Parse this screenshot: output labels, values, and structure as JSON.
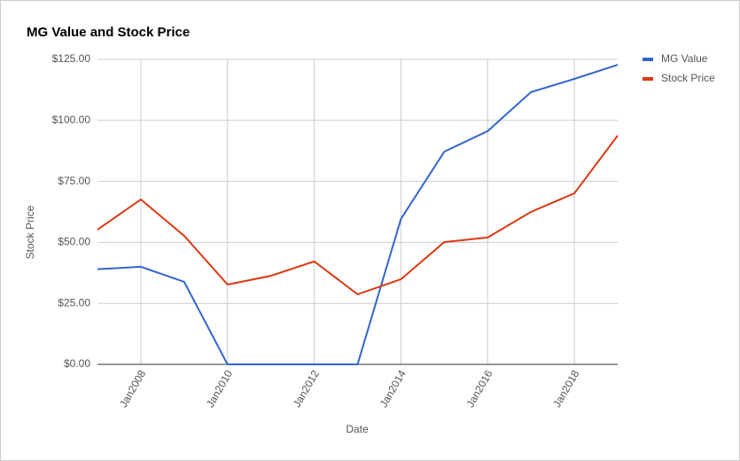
{
  "chart_data": {
    "type": "line",
    "title": "MG Value and Stock Price",
    "categories": [
      null,
      "Jan2008",
      null,
      "Jan2010",
      null,
      "Jan2012",
      null,
      "Jan2014",
      null,
      "Jan2016",
      null,
      "Jan2018",
      null
    ],
    "series": [
      {
        "name": "MG Value",
        "color": "#3366cc",
        "values": [
          39,
          40,
          33.8,
          0,
          0,
          0,
          0,
          59.6,
          87.2,
          95.6,
          111.6,
          117,
          122.8
        ]
      },
      {
        "name": "Stock Price",
        "color": "#dc3912",
        "values": [
          55.2,
          67.6,
          52.7,
          32.7,
          36.3,
          42.2,
          28.7,
          34.9,
          50.1,
          52,
          62.5,
          70.1,
          93.8
        ]
      }
    ],
    "ylim": [
      0,
      125
    ],
    "yticks": [
      {
        "value": 0,
        "label": "$0.00"
      },
      {
        "value": 25,
        "label": "$25.00"
      },
      {
        "value": 50,
        "label": "$50.00"
      },
      {
        "value": 75,
        "label": "$75.00"
      },
      {
        "value": 100,
        "label": "$100.00"
      },
      {
        "value": 125,
        "label": "$125.00"
      }
    ],
    "x_label": "Date",
    "y_label": "Stock Price",
    "grid": true,
    "legend": "right"
  }
}
